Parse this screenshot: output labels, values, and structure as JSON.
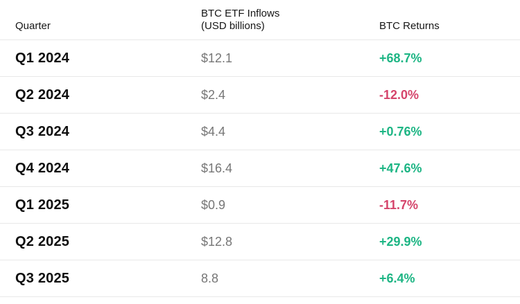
{
  "table": {
    "columns": [
      {
        "label": "Quarter"
      },
      {
        "label": "BTC ETF Inflows\n(USD billions)"
      },
      {
        "label": "BTC Returns"
      }
    ],
    "rows": [
      {
        "quarter": "Q1 2024",
        "inflows": "$12.1",
        "returns": "+68.7%",
        "direction": "up"
      },
      {
        "quarter": "Q2 2024",
        "inflows": "$2.4",
        "returns": "-12.0%",
        "direction": "down"
      },
      {
        "quarter": "Q3 2024",
        "inflows": "$4.4",
        "returns": "+0.76%",
        "direction": "up"
      },
      {
        "quarter": "Q4 2024",
        "inflows": "$16.4",
        "returns": "+47.6%",
        "direction": "up"
      },
      {
        "quarter": "Q1 2025",
        "inflows": "$0.9",
        "returns": "-11.7%",
        "direction": "down"
      },
      {
        "quarter": "Q2 2025",
        "inflows": "$12.8",
        "returns": "+29.9%",
        "direction": "up"
      },
      {
        "quarter": "Q3 2025",
        "inflows": "8.8",
        "returns": "+6.4%",
        "direction": "up"
      }
    ],
    "colors": {
      "positive": "#1db584",
      "negative": "#d5446b",
      "value_gray": "#767676",
      "heading_dark": "#161616",
      "divider": "#e8e8e8",
      "background": "#ffffff"
    }
  },
  "chart_data": {
    "type": "table",
    "title": "",
    "columns": [
      "Quarter",
      "BTC ETF Inflows (USD billions)",
      "BTC Returns"
    ],
    "rows": [
      [
        "Q1 2024",
        "$12.1",
        "+68.7%"
      ],
      [
        "Q2 2024",
        "$2.4",
        "-12.0%"
      ],
      [
        "Q3 2024",
        "$4.4",
        "+0.76%"
      ],
      [
        "Q4 2024",
        "$16.4",
        "+47.6%"
      ],
      [
        "Q1 2025",
        "$0.9",
        "-11.7%"
      ],
      [
        "Q2 2025",
        "$12.8",
        "+29.9%"
      ],
      [
        "Q3 2025",
        "8.8",
        "+6.4%"
      ]
    ],
    "numeric": {
      "quarters": [
        "Q1 2024",
        "Q2 2024",
        "Q3 2024",
        "Q4 2024",
        "Q1 2025",
        "Q2 2025",
        "Q3 2025"
      ],
      "inflows_usd_billions": [
        12.1,
        2.4,
        4.4,
        16.4,
        0.9,
        12.8,
        8.8
      ],
      "btc_returns_pct": [
        68.7,
        -12.0,
        0.76,
        47.6,
        -11.7,
        29.9,
        6.4
      ]
    }
  }
}
